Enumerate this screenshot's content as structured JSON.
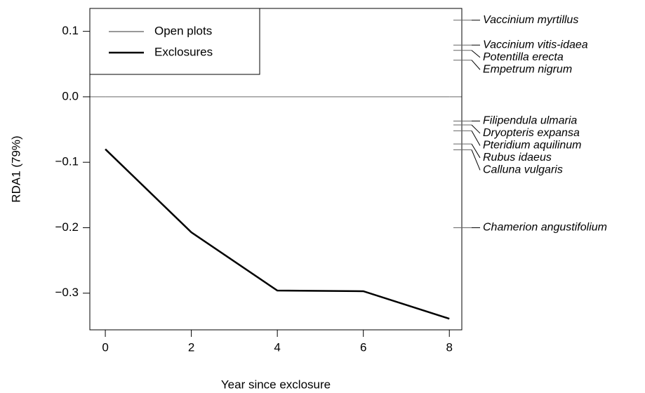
{
  "chart_data": {
    "type": "line",
    "xlabel": "Year since exclosure",
    "ylabel": "RDA1 (79%)",
    "x": [
      0,
      2,
      4,
      6,
      8
    ],
    "series": [
      {
        "name": "Open plots",
        "color": "#999999",
        "values": [
          0,
          0,
          0,
          0,
          0
        ]
      },
      {
        "name": "Exclosures",
        "color": "#000000",
        "values": [
          -0.08,
          -0.207,
          -0.296,
          -0.297,
          -0.339
        ]
      }
    ],
    "xlim": [
      -0.36,
      8.29
    ],
    "xticks": [
      0,
      2,
      4,
      6,
      8
    ],
    "ylim": [
      -0.356,
      0.135
    ],
    "yticks": [
      {
        "value": -0.3,
        "label": "−0.3"
      },
      {
        "value": -0.2,
        "label": "−0.2"
      },
      {
        "value": -0.1,
        "label": "−0.1"
      },
      {
        "value": 0,
        "label": "0.0"
      },
      0.1
    ],
    "legend": "top-left",
    "species": [
      {
        "name": "Vaccinium myrtillus",
        "value": 0.117
      },
      {
        "name": "Vaccinium vitis-idaea",
        "value": 0.079
      },
      {
        "name": "Potentilla erecta",
        "value": 0.071
      },
      {
        "name": "Empetrum nigrum",
        "value": 0.056
      },
      {
        "name": "Filipendula ulmaria",
        "value": -0.037
      },
      {
        "name": "Dryopteris expansa",
        "value": -0.043
      },
      {
        "name": "Pteridium aquilinum",
        "value": -0.052
      },
      {
        "name": "Rubus idaeus",
        "value": -0.072
      },
      {
        "name": "Calluna vulgaris",
        "value": -0.081
      },
      {
        "name": "Chamerion angustifolium",
        "value": -0.2
      }
    ]
  }
}
